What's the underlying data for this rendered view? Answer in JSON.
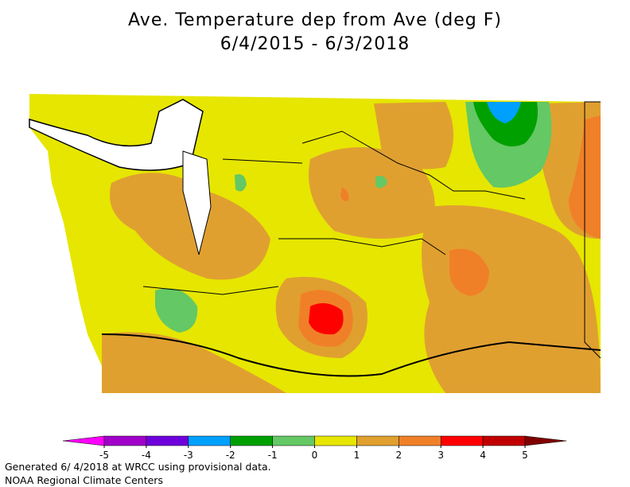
{
  "header": {
    "title": "Ave. Temperature dep from Ave (deg F)",
    "subtitle": "6/4/2015 - 6/3/2018"
  },
  "legend": {
    "ticks": [
      -5,
      -4,
      -3,
      -2,
      -1,
      0,
      1,
      2,
      3,
      4,
      5
    ],
    "colors": [
      "#ff00ff",
      "#a000c8",
      "#6e00dc",
      "#00a0ff",
      "#00a000",
      "#64c864",
      "#e6e600",
      "#e0a030",
      "#f08028",
      "#ff0000",
      "#c00000",
      "#800000"
    ]
  },
  "footer": {
    "line1": "Generated 6/ 4/2018 at WRCC using provisional data.",
    "line2": "NOAA Regional Climate Centers"
  }
}
